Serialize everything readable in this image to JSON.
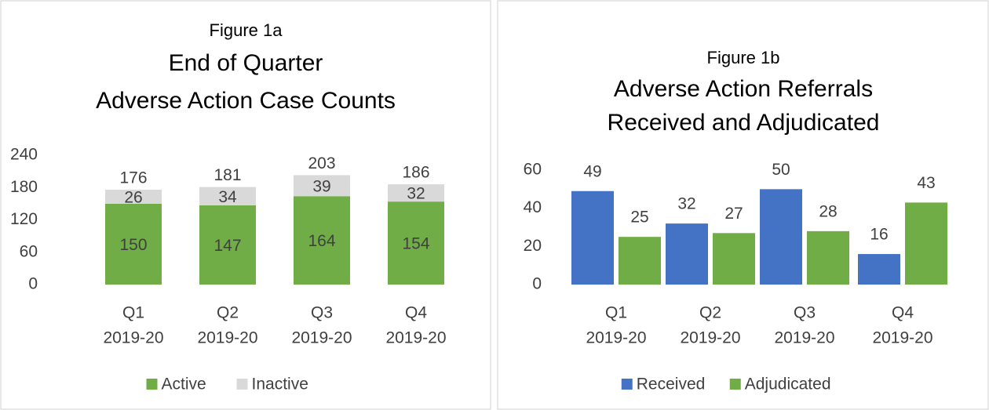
{
  "chart_data": [
    {
      "type": "stacked_bar",
      "title": [
        "Figure 1a",
        "End of Quarter",
        "Adverse Action Case Counts"
      ],
      "categories": [
        [
          "Q1",
          "2019-20"
        ],
        [
          "Q2",
          "2019-20"
        ],
        [
          "Q3",
          "2019-20"
        ],
        [
          "Q4",
          "2019-20"
        ]
      ],
      "series": [
        {
          "name": "Active",
          "color": "#70ad47",
          "values": [
            150,
            147,
            164,
            154
          ]
        },
        {
          "name": "Inactive",
          "color": "#d9d9d9",
          "values": [
            26,
            34,
            39,
            32
          ]
        }
      ],
      "totals": [
        176,
        181,
        203,
        186
      ],
      "ylim": [
        0,
        240
      ],
      "yticks": [
        0,
        60,
        120,
        180,
        240
      ],
      "grid": false,
      "legend": "bottom"
    },
    {
      "type": "bar",
      "title": [
        "Figure 1b",
        "Adverse Action Referrals",
        "Received and Adjudicated"
      ],
      "categories": [
        [
          "Q1",
          "2019-20"
        ],
        [
          "Q2",
          "2019-20"
        ],
        [
          "Q3",
          "2019-20"
        ],
        [
          "Q4",
          "2019-20"
        ]
      ],
      "series": [
        {
          "name": "Received",
          "color": "#4472c4",
          "values": [
            49,
            32,
            50,
            16
          ]
        },
        {
          "name": "Adjudicated",
          "color": "#70ad47",
          "values": [
            25,
            27,
            28,
            43
          ]
        }
      ],
      "ylim": [
        0,
        60
      ],
      "yticks": [
        0,
        20,
        40,
        60
      ],
      "grid": false,
      "legend": "bottom"
    }
  ]
}
